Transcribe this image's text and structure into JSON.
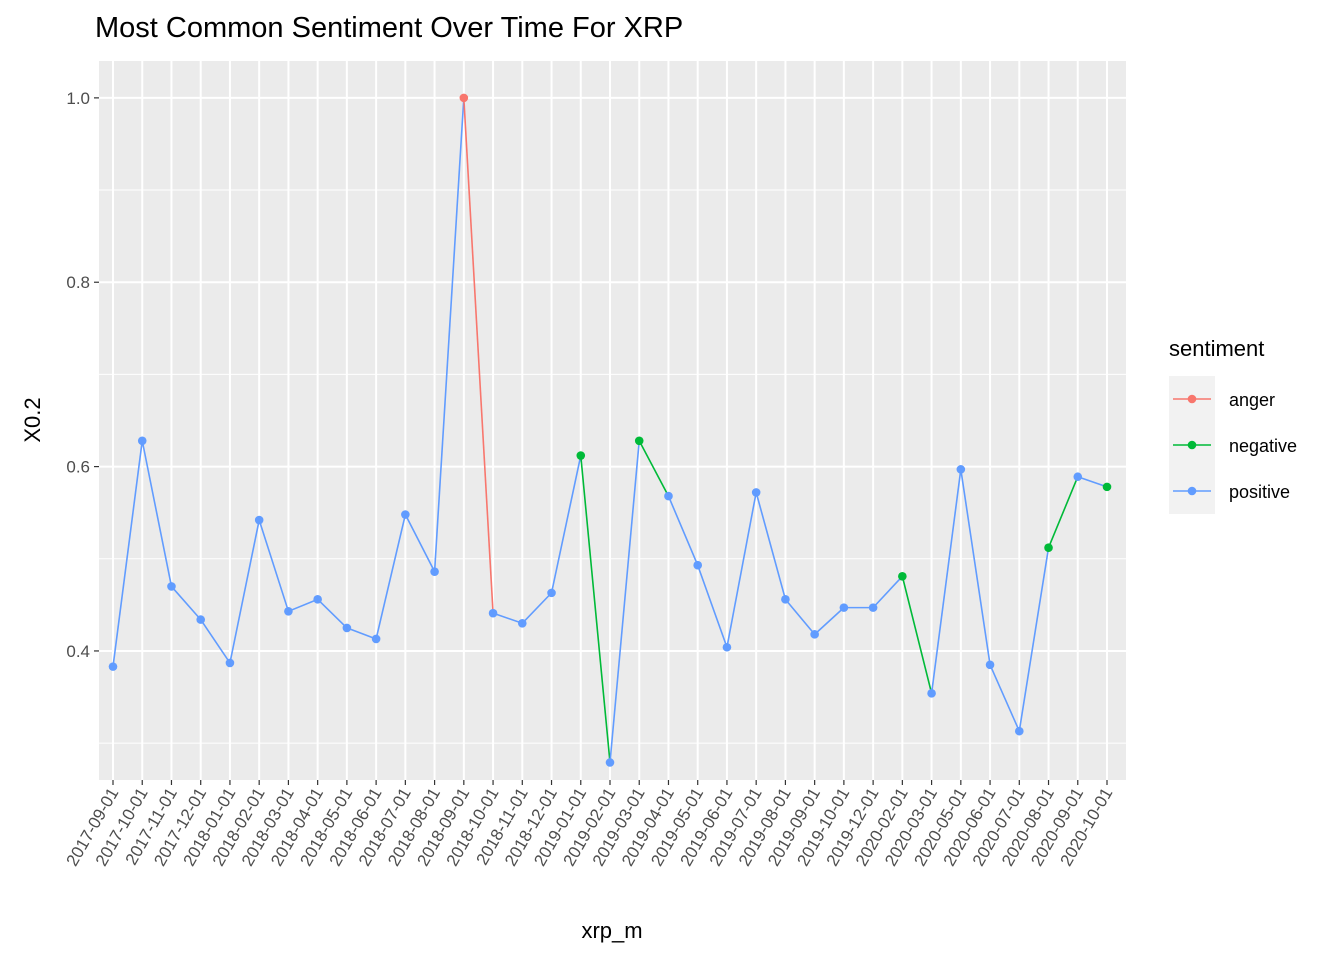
{
  "chart_data": {
    "type": "line",
    "title": "Most Common Sentiment Over Time For XRP",
    "xlabel": "xrp_m",
    "ylabel": "X0.2",
    "ylim": [
      0.26,
      1.04
    ],
    "y_ticks": [
      0.4,
      0.6,
      0.8,
      1.0
    ],
    "y_tick_labels": [
      "0.4",
      "0.6",
      "0.8",
      "1.0"
    ],
    "grid": true,
    "legend_position": "right",
    "legend_title": "sentiment",
    "categories": [
      "2017-09-01",
      "2017-10-01",
      "2017-11-01",
      "2017-12-01",
      "2018-01-01",
      "2018-02-01",
      "2018-03-01",
      "2018-04-01",
      "2018-05-01",
      "2018-06-01",
      "2018-07-01",
      "2018-08-01",
      "2018-09-01",
      "2018-10-01",
      "2018-11-01",
      "2018-12-01",
      "2019-01-01",
      "2019-02-01",
      "2019-03-01",
      "2019-04-01",
      "2019-05-01",
      "2019-06-01",
      "2019-07-01",
      "2019-08-01",
      "2019-09-01",
      "2019-10-01",
      "2019-12-01",
      "2020-02-01",
      "2020-03-01",
      "2020-05-01",
      "2020-06-01",
      "2020-07-01",
      "2020-08-01",
      "2020-09-01",
      "2020-10-01"
    ],
    "values": [
      0.383,
      0.628,
      0.47,
      0.434,
      0.387,
      0.542,
      0.443,
      0.456,
      0.425,
      0.413,
      0.548,
      0.486,
      1.0,
      0.441,
      0.43,
      0.463,
      0.612,
      0.279,
      0.628,
      0.568,
      0.493,
      0.404,
      0.572,
      0.456,
      0.418,
      0.447,
      0.447,
      0.481,
      0.354,
      0.597,
      0.385,
      0.313,
      0.512,
      0.589,
      0.578
    ],
    "point_sentiment": [
      "positive",
      "positive",
      "positive",
      "positive",
      "positive",
      "positive",
      "positive",
      "positive",
      "positive",
      "positive",
      "positive",
      "positive",
      "anger",
      "positive",
      "positive",
      "positive",
      "negative",
      "positive",
      "negative",
      "positive",
      "positive",
      "positive",
      "positive",
      "positive",
      "positive",
      "positive",
      "positive",
      "negative",
      "positive",
      "positive",
      "positive",
      "positive",
      "negative",
      "positive",
      "negative"
    ],
    "series": [
      {
        "name": "anger",
        "color": "#F8766D"
      },
      {
        "name": "negative",
        "color": "#00BA38"
      },
      {
        "name": "positive",
        "color": "#619CFF"
      }
    ]
  }
}
